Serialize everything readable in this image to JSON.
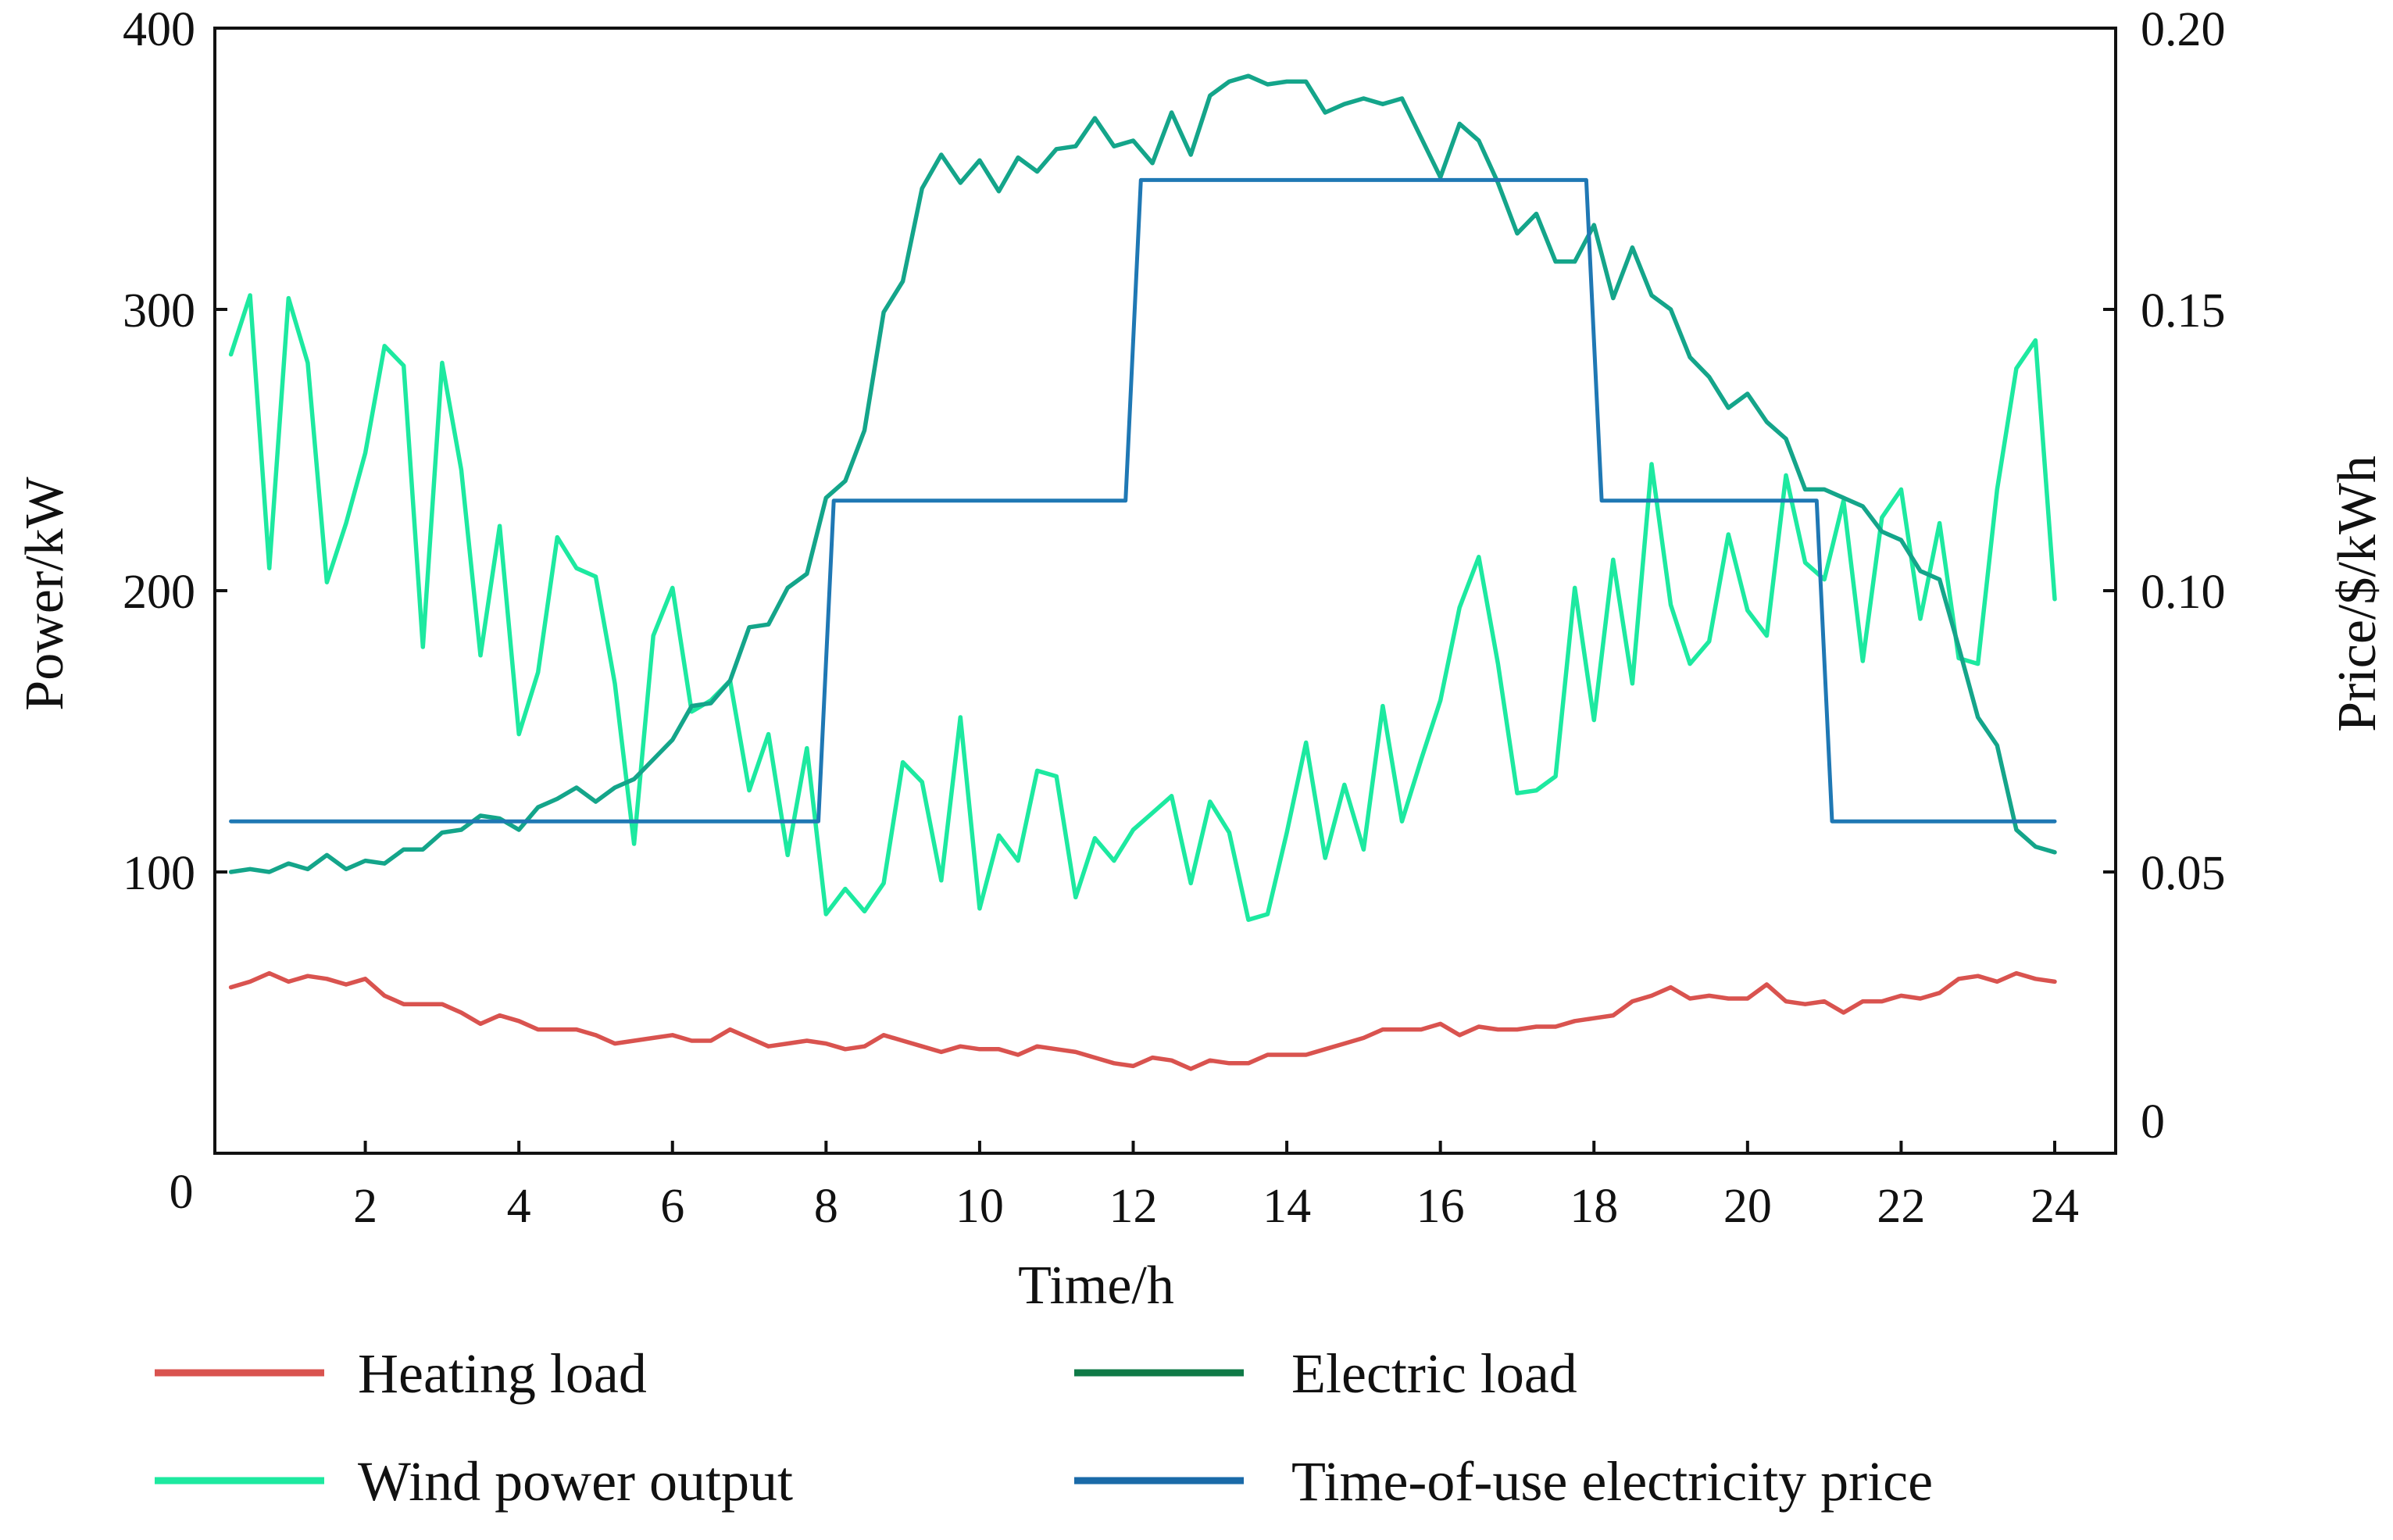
{
  "chart_data": {
    "type": "line",
    "x_label": "Time/h",
    "y_left_label": "Power/kW",
    "y_right_label": "Price/$/kWh",
    "x_range": [
      0,
      24
    ],
    "y_left_range": [
      0,
      400
    ],
    "y_right_range": [
      0,
      0.2
    ],
    "x_ticks": [
      "2",
      "4",
      "6",
      "8",
      "10",
      "12",
      "14",
      "16",
      "18",
      "20",
      "22",
      "24"
    ],
    "x_origin_label": "0",
    "y_left_ticks": [
      "100",
      "200",
      "300",
      "400"
    ],
    "y_right_ticks": [
      "0",
      "0.05",
      "0.10",
      "0.15",
      "0.20"
    ],
    "colors": {
      "heating": "#d9534f",
      "wind": "#1de9a0",
      "electric": "#14a58a",
      "price": "#1f78b4",
      "legend_electric": "#0f7a47",
      "legend_price": "#1a6aa8"
    },
    "legend": {
      "heating": "Heating load",
      "electric": "Electric load",
      "wind": "Wind power output",
      "price": "Time-of-use electricity price"
    },
    "series": [
      {
        "key": "heating",
        "name": "Heating load",
        "axis": "left",
        "x": [
          0.25,
          0.5,
          0.75,
          1.0,
          1.25,
          1.5,
          1.75,
          2.0,
          2.25,
          2.5,
          2.75,
          3.0,
          3.25,
          3.5,
          3.75,
          4.0,
          4.25,
          4.5,
          4.75,
          5.0,
          5.25,
          5.5,
          5.75,
          6.0,
          6.25,
          6.5,
          6.75,
          7.0,
          7.25,
          7.5,
          7.75,
          8.0,
          8.25,
          8.5,
          8.75,
          9.0,
          9.25,
          9.5,
          9.75,
          10.0,
          10.25,
          10.5,
          10.75,
          11.0,
          11.25,
          11.5,
          11.75,
          12.0,
          12.25,
          12.5,
          12.75,
          13.0,
          13.25,
          13.5,
          13.75,
          14.0,
          14.25,
          14.5,
          14.75,
          15.0,
          15.25,
          15.5,
          15.75,
          16.0,
          16.25,
          16.5,
          16.75,
          17.0,
          17.25,
          17.5,
          17.75,
          18.0,
          18.25,
          18.5,
          18.75,
          19.0,
          19.25,
          19.5,
          19.75,
          20.0,
          20.25,
          20.5,
          20.75,
          21.0,
          21.25,
          21.5,
          21.75,
          22.0,
          22.25,
          22.5,
          22.75,
          23.0,
          23.25,
          23.5,
          23.75,
          24.0
        ],
        "y": [
          59,
          61,
          64,
          61,
          63,
          62,
          60,
          62,
          56,
          53,
          53,
          53,
          50,
          46,
          49,
          47,
          44,
          44,
          44,
          42,
          39,
          40,
          41,
          42,
          40,
          40,
          44,
          41,
          38,
          39,
          40,
          39,
          37,
          38,
          42,
          40,
          38,
          36,
          38,
          37,
          37,
          35,
          38,
          37,
          36,
          34,
          32,
          31,
          34,
          33,
          30,
          33,
          32,
          32,
          35,
          35,
          35,
          37,
          39,
          41,
          44,
          44,
          44,
          46,
          42,
          45,
          44,
          44,
          45,
          45,
          47,
          48,
          49,
          54,
          56,
          59,
          55,
          56,
          55,
          55,
          60,
          54,
          53,
          54,
          50,
          54,
          54,
          56,
          55,
          57,
          62,
          63,
          61,
          64,
          62,
          61
        ]
      },
      {
        "key": "wind",
        "name": "Wind power output",
        "axis": "left",
        "x": [
          0.25,
          0.5,
          0.75,
          1.0,
          1.25,
          1.5,
          1.75,
          2.0,
          2.25,
          2.5,
          2.75,
          3.0,
          3.25,
          3.5,
          3.75,
          4.0,
          4.25,
          4.5,
          4.75,
          5.0,
          5.25,
          5.5,
          5.75,
          6.0,
          6.25,
          6.5,
          6.75,
          7.0,
          7.25,
          7.5,
          7.75,
          8.0,
          8.25,
          8.5,
          8.75,
          9.0,
          9.25,
          9.5,
          9.75,
          10.0,
          10.25,
          10.5,
          10.75,
          11.0,
          11.25,
          11.5,
          11.75,
          12.0,
          12.25,
          12.5,
          12.75,
          13.0,
          13.25,
          13.5,
          13.75,
          14.0,
          14.25,
          14.5,
          14.75,
          15.0,
          15.25,
          15.5,
          15.75,
          16.0,
          16.25,
          16.5,
          16.75,
          17.0,
          17.25,
          17.5,
          17.75,
          18.0,
          18.25,
          18.5,
          18.75,
          19.0,
          19.25,
          19.5,
          19.75,
          20.0,
          20.25,
          20.5,
          20.75,
          21.0,
          21.25,
          21.5,
          21.75,
          22.0,
          22.25,
          22.5,
          22.75,
          23.0,
          23.25,
          23.5,
          23.75,
          24.0
        ],
        "y": [
          284,
          305,
          208,
          304,
          281,
          203,
          224,
          249,
          287,
          280,
          180,
          281,
          243,
          177,
          223,
          149,
          171,
          219,
          208,
          205,
          167,
          110,
          184,
          201,
          157,
          161,
          168,
          129,
          149,
          106,
          144,
          85,
          94,
          86,
          96,
          139,
          132,
          97,
          155,
          87,
          113,
          104,
          136,
          134,
          91,
          112,
          104,
          115,
          121,
          127,
          96,
          125,
          114,
          83,
          85,
          114,
          146,
          105,
          131,
          108,
          159,
          118,
          140,
          161,
          194,
          212,
          174,
          128,
          129,
          134,
          201,
          154,
          211,
          167,
          245,
          195,
          174,
          182,
          220,
          193,
          184,
          241,
          210,
          204,
          232,
          175,
          226,
          236,
          190,
          224,
          176,
          174,
          236,
          279,
          289,
          197
        ]
      },
      {
        "key": "electric",
        "name": "Electric load",
        "axis": "left",
        "x": [
          0.25,
          0.5,
          0.75,
          1.0,
          1.25,
          1.5,
          1.75,
          2.0,
          2.25,
          2.5,
          2.75,
          3.0,
          3.25,
          3.5,
          3.75,
          4.0,
          4.25,
          4.5,
          4.75,
          5.0,
          5.25,
          5.5,
          5.75,
          6.0,
          6.25,
          6.5,
          6.75,
          7.0,
          7.25,
          7.5,
          7.75,
          8.0,
          8.25,
          8.5,
          8.75,
          9.0,
          9.25,
          9.5,
          9.75,
          10.0,
          10.25,
          10.5,
          10.75,
          11.0,
          11.25,
          11.5,
          11.75,
          12.0,
          12.25,
          12.5,
          12.75,
          13.0,
          13.25,
          13.5,
          13.75,
          14.0,
          14.25,
          14.5,
          14.75,
          15.0,
          15.25,
          15.5,
          15.75,
          16.0,
          16.25,
          16.5,
          16.75,
          17.0,
          17.25,
          17.5,
          17.75,
          18.0,
          18.25,
          18.5,
          18.75,
          19.0,
          19.25,
          19.5,
          19.75,
          20.0,
          20.25,
          20.5,
          20.75,
          21.0,
          21.25,
          21.5,
          21.75,
          22.0,
          22.25,
          22.5,
          22.75,
          23.0,
          23.25,
          23.5,
          23.75,
          24.0
        ],
        "y": [
          100,
          101,
          100,
          103,
          101,
          106,
          101,
          104,
          103,
          108,
          108,
          114,
          115,
          120,
          119,
          115,
          123,
          126,
          130,
          125,
          130,
          133,
          140,
          147,
          159,
          160,
          168,
          187,
          188,
          201,
          206,
          233,
          239,
          257,
          299,
          310,
          343,
          355,
          345,
          353,
          342,
          354,
          349,
          357,
          358,
          368,
          358,
          360,
          352,
          370,
          355,
          376,
          381,
          383,
          380,
          381,
          381,
          370,
          373,
          375,
          373,
          375,
          361,
          347,
          366,
          360,
          345,
          327,
          334,
          317,
          317,
          330,
          304,
          322,
          305,
          300,
          283,
          276,
          265,
          270,
          260,
          254,
          236,
          236,
          233,
          230,
          221,
          218,
          207,
          204,
          180,
          155,
          145,
          115,
          109,
          107
        ]
      },
      {
        "key": "price",
        "name": "Time-of-use electricity price",
        "axis": "right",
        "x": [
          0.25,
          7.9,
          8.1,
          11.9,
          12.1,
          17.9,
          18.1,
          20.9,
          21.1,
          24.0
        ],
        "y": [
          0.059,
          0.059,
          0.116,
          0.116,
          0.173,
          0.173,
          0.116,
          0.116,
          0.059,
          0.059
        ]
      }
    ]
  }
}
